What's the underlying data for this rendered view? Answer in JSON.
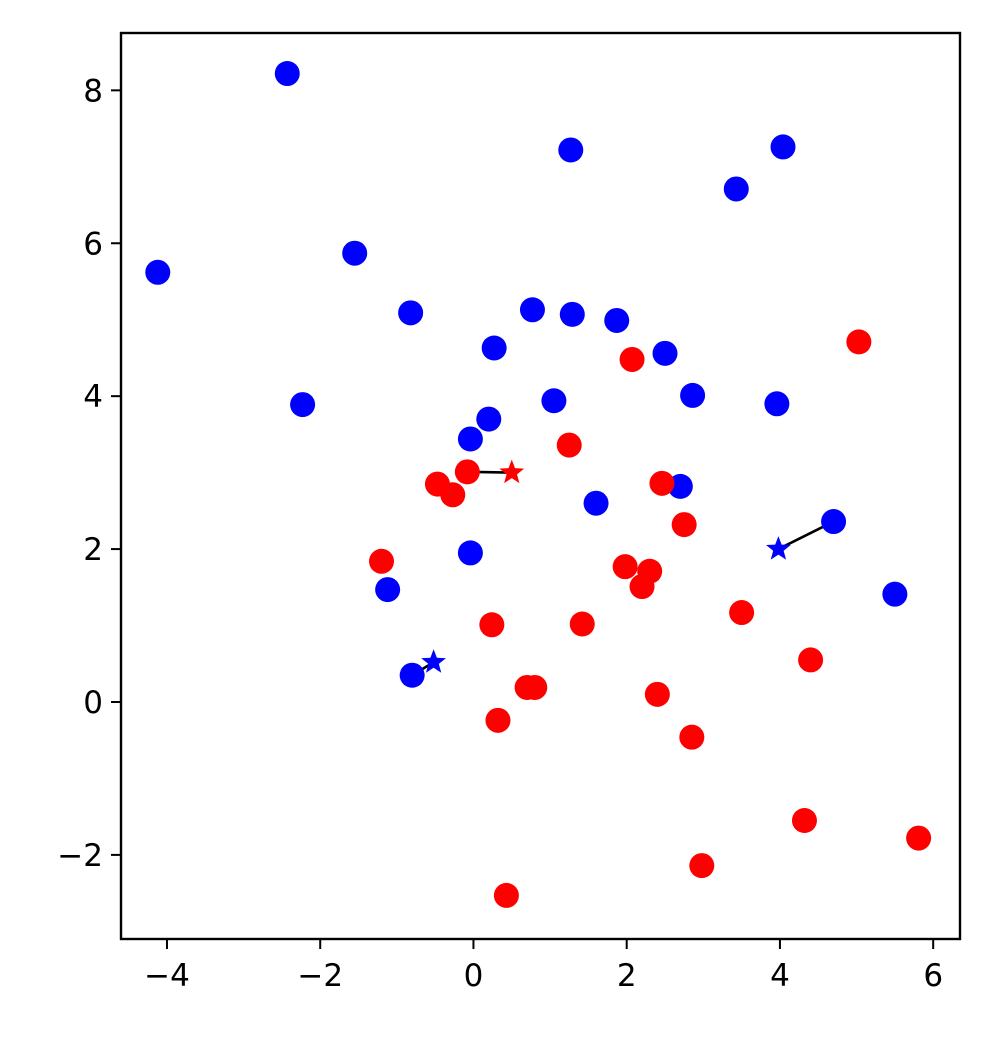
{
  "chart_data": {
    "type": "scatter",
    "title": "",
    "xlabel": "",
    "ylabel": "",
    "xlim": [
      -4.6,
      6.35
    ],
    "ylim": [
      -3.1,
      8.75
    ],
    "grid": false,
    "x_ticks": [
      {
        "value": -4,
        "label": "−4"
      },
      {
        "value": -2,
        "label": "−2"
      },
      {
        "value": 0,
        "label": "0"
      },
      {
        "value": 2,
        "label": "2"
      },
      {
        "value": 4,
        "label": "4"
      },
      {
        "value": 6,
        "label": "6"
      }
    ],
    "y_ticks": [
      {
        "value": -2,
        "label": "−2"
      },
      {
        "value": 0,
        "label": "0"
      },
      {
        "value": 2,
        "label": "2"
      },
      {
        "value": 4,
        "label": "4"
      },
      {
        "value": 6,
        "label": "6"
      },
      {
        "value": 8,
        "label": "8"
      }
    ],
    "series": [
      {
        "color": "#0000ff",
        "marker": "circle",
        "points": [
          [
            -2.43,
            8.22
          ],
          [
            1.27,
            7.22
          ],
          [
            4.04,
            7.26
          ],
          [
            3.43,
            6.71
          ],
          [
            -4.12,
            5.62
          ],
          [
            -1.55,
            5.87
          ],
          [
            -0.82,
            5.09
          ],
          [
            0.77,
            5.13
          ],
          [
            1.29,
            5.07
          ],
          [
            1.87,
            4.99
          ],
          [
            0.27,
            4.63
          ],
          [
            2.5,
            4.56
          ],
          [
            2.86,
            4.01
          ],
          [
            3.96,
            3.9
          ],
          [
            1.05,
            3.94
          ],
          [
            -2.23,
            3.89
          ],
          [
            0.2,
            3.7
          ],
          [
            -0.04,
            3.44
          ],
          [
            2.7,
            2.82
          ],
          [
            1.6,
            2.6
          ],
          [
            4.7,
            2.36
          ],
          [
            -0.04,
            1.95
          ],
          [
            -1.12,
            1.47
          ],
          [
            5.5,
            1.41
          ],
          [
            -0.8,
            0.35
          ]
        ]
      },
      {
        "color": "#ff0000",
        "marker": "circle",
        "points": [
          [
            5.03,
            4.71
          ],
          [
            2.07,
            4.48
          ],
          [
            1.25,
            3.36
          ],
          [
            -0.08,
            3.01
          ],
          [
            -0.47,
            2.85
          ],
          [
            -0.27,
            2.71
          ],
          [
            2.46,
            2.86
          ],
          [
            2.75,
            2.32
          ],
          [
            -1.2,
            1.84
          ],
          [
            1.98,
            1.77
          ],
          [
            2.3,
            1.71
          ],
          [
            2.2,
            1.51
          ],
          [
            3.5,
            1.17
          ],
          [
            0.24,
            1.01
          ],
          [
            1.42,
            1.02
          ],
          [
            4.4,
            0.55
          ],
          [
            0.7,
            0.19
          ],
          [
            0.8,
            0.19
          ],
          [
            2.4,
            0.1
          ],
          [
            0.32,
            -0.24
          ],
          [
            2.85,
            -0.46
          ],
          [
            4.32,
            -1.55
          ],
          [
            5.81,
            -1.78
          ],
          [
            2.98,
            -2.14
          ],
          [
            0.43,
            -2.53
          ]
        ]
      }
    ],
    "special_points": [
      {
        "x": 0.5,
        "y": 3.0,
        "color": "#ff0000",
        "marker": "star"
      },
      {
        "x": 3.98,
        "y": 2.0,
        "color": "#0000ff",
        "marker": "star"
      },
      {
        "x": -0.52,
        "y": 0.52,
        "color": "#0000ff",
        "marker": "star"
      }
    ],
    "connector_lines": [
      {
        "from": [
          0.5,
          3.0
        ],
        "to": [
          -0.08,
          3.01
        ],
        "color": "#000000"
      },
      {
        "from": [
          3.98,
          2.0
        ],
        "to": [
          4.7,
          2.36
        ],
        "color": "#000000"
      },
      {
        "from": [
          -0.52,
          0.52
        ],
        "to": [
          -0.8,
          0.35
        ],
        "color": "#000000"
      }
    ]
  }
}
